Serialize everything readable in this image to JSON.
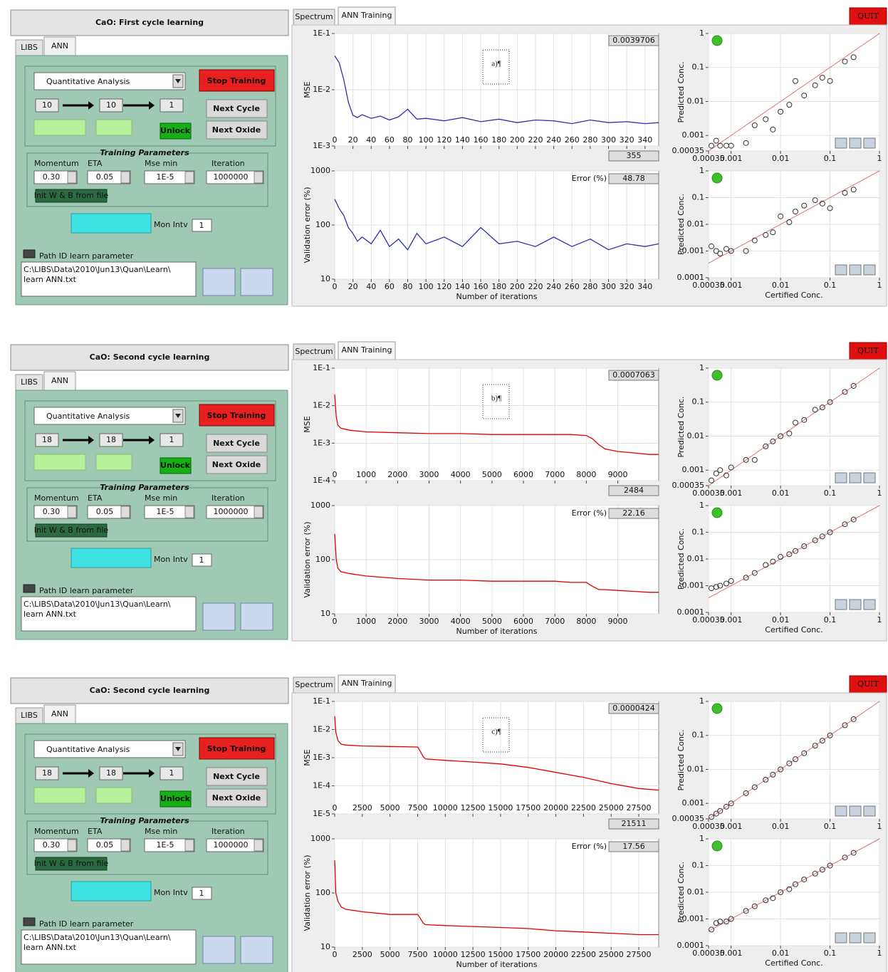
{
  "panels": [
    {
      "title": "CaO: First cycle learning",
      "tabs": [
        "LIBS",
        "ANN"
      ],
      "analysis": "Quantitative Analysis",
      "stop": "Stop Training",
      "layers": [
        "10",
        "10",
        "1"
      ],
      "next_cycle": "Next Cycle",
      "next_oxide": "Next Oxide",
      "unlock": "Unlock",
      "params": {
        "title": "Training Parameters",
        "labels": [
          "Momentum",
          "ETA",
          "Mse min",
          "Iteration"
        ],
        "values": [
          "0.30",
          "0.05",
          "1E-5",
          "1000000"
        ]
      },
      "init": "Init W & B from file",
      "mon_label": "Mon Intv",
      "mon_value": "1",
      "path_label": "Path ID learn parameter",
      "path": [
        "C:\\LIBS\\Data\\2010\\Jun13\\Quan\\Learn\\",
        "learn ANN.txt"
      ],
      "view_tabs": [
        "Spectrum",
        "ANN Training"
      ],
      "quit": "QUIT",
      "tag": "a)¶",
      "mse": {
        "type": "line",
        "ylabel": "MSE",
        "log_y": true,
        "grid": true,
        "color": "#3030b0",
        "readout": "0.0039706",
        "iterations": "355",
        "xlim": [
          0,
          355
        ],
        "ylim": [
          0.001,
          0.1
        ],
        "xticks": [
          0,
          20,
          40,
          60,
          80,
          100,
          120,
          140,
          160,
          180,
          200,
          220,
          240,
          260,
          280,
          300,
          320,
          340
        ],
        "yticks": [
          {
            "value": 0.1,
            "label": "1E-1"
          },
          {
            "value": 0.01,
            "label": "1E-2"
          },
          {
            "value": 0.001,
            "label": "1E-3"
          }
        ],
        "x": [
          0,
          5,
          10,
          15,
          20,
          25,
          30,
          40,
          50,
          60,
          70,
          80,
          90,
          100,
          120,
          140,
          160,
          180,
          200,
          220,
          240,
          260,
          280,
          300,
          320,
          340,
          355
        ],
        "values": [
          0.04,
          0.03,
          0.015,
          0.006,
          0.0035,
          0.0032,
          0.0036,
          0.0031,
          0.0034,
          0.0029,
          0.0033,
          0.0045,
          0.003,
          0.0031,
          0.0028,
          0.0032,
          0.0027,
          0.003,
          0.0026,
          0.0029,
          0.0028,
          0.0025,
          0.0029,
          0.0026,
          0.0027,
          0.0025,
          0.0026
        ]
      },
      "validation": {
        "type": "line",
        "ylabel": "Validation error (%)",
        "xlabel": "Number of iterations",
        "log_y": true,
        "grid": true,
        "color": "#3030b0",
        "error_label": "Error (%)",
        "error": "48.78",
        "xlim": [
          0,
          355
        ],
        "ylim": [
          10,
          1000
        ],
        "xticks": [
          0,
          20,
          40,
          60,
          80,
          100,
          120,
          140,
          160,
          180,
          200,
          220,
          240,
          260,
          280,
          300,
          320,
          340
        ],
        "yticks": [
          1000,
          100,
          10
        ],
        "x": [
          0,
          5,
          10,
          15,
          20,
          25,
          30,
          40,
          50,
          60,
          70,
          80,
          90,
          100,
          120,
          140,
          160,
          180,
          200,
          220,
          240,
          260,
          280,
          300,
          320,
          340,
          355
        ],
        "values": [
          300,
          200,
          150,
          90,
          70,
          50,
          60,
          45,
          80,
          40,
          55,
          35,
          70,
          45,
          60,
          40,
          90,
          45,
          50,
          40,
          60,
          40,
          55,
          35,
          45,
          40,
          45
        ]
      },
      "pred_top": {
        "type": "scatter",
        "ylabel": "Predicted Conc.",
        "log_x": true,
        "log_y": true,
        "xlim": [
          0.00035,
          1
        ],
        "ylim": [
          0.00035,
          1
        ],
        "xticks": [
          0.00035,
          0.001,
          0.01,
          0.1,
          1
        ],
        "yticks": [
          1,
          0.1,
          0.01,
          0.001,
          0.00035
        ],
        "x": [
          0.0004,
          0.0005,
          0.0006,
          0.0008,
          0.001,
          0.002,
          0.003,
          0.005,
          0.007,
          0.01,
          0.015,
          0.02,
          0.03,
          0.05,
          0.07,
          0.1,
          0.2,
          0.3
        ],
        "values": [
          0.0005,
          0.0007,
          0.0005,
          0.0005,
          0.0005,
          0.0006,
          0.002,
          0.003,
          0.0015,
          0.005,
          0.008,
          0.04,
          0.015,
          0.03,
          0.05,
          0.04,
          0.15,
          0.2
        ]
      },
      "pred_bottom": {
        "type": "scatter",
        "ylabel": "Predicted Conc.",
        "xlabel": "Certified Conc.",
        "log_x": true,
        "log_y": true,
        "xlim": [
          0.00035,
          1
        ],
        "ylim": [
          0.0001,
          1
        ],
        "xticks": [
          0.00035,
          0.001,
          0.01,
          0.1,
          1
        ],
        "yticks": [
          1,
          0.1,
          0.01,
          0.001,
          0.0001
        ],
        "x": [
          0.0004,
          0.0005,
          0.0006,
          0.0008,
          0.001,
          0.002,
          0.003,
          0.005,
          0.007,
          0.01,
          0.015,
          0.02,
          0.03,
          0.05,
          0.07,
          0.1,
          0.2,
          0.3
        ],
        "values": [
          0.0015,
          0.001,
          0.0008,
          0.0012,
          0.001,
          0.001,
          0.0025,
          0.004,
          0.005,
          0.02,
          0.012,
          0.03,
          0.05,
          0.08,
          0.06,
          0.04,
          0.15,
          0.2
        ]
      }
    },
    {
      "title": "CaO: Second cycle learning",
      "tabs": [
        "LIBS",
        "ANN"
      ],
      "analysis": "Quantitative Analysis",
      "stop": "Stop Training",
      "layers": [
        "18",
        "18",
        "1"
      ],
      "next_cycle": "Next Cycle",
      "next_oxide": "Next Oxide",
      "unlock": "Unlock",
      "params": {
        "title": "Training Parameters",
        "labels": [
          "Momentum",
          "ETA",
          "Mse min",
          "Iteration"
        ],
        "values": [
          "0.30",
          "0.05",
          "1E-5",
          "1000000"
        ]
      },
      "init": "Init W & B from file",
      "mon_label": "Mon Intv",
      "mon_value": "1",
      "path_label": "Path ID learn parameter",
      "path": [
        "C:\\LIBS\\Data\\2010\\Jun13\\Quan\\Learn\\",
        "learn ANN.txt"
      ],
      "view_tabs": [
        "Spectrum",
        "ANN Training"
      ],
      "quit": "QUIT",
      "tag": "b)¶",
      "mse": {
        "type": "line",
        "ylabel": "MSE",
        "log_y": true,
        "grid": true,
        "color": "#e00000",
        "readout": "0.0007063",
        "iterations": "2484",
        "xlim": [
          0,
          10300
        ],
        "ylim": [
          0.0001,
          0.1
        ],
        "xticks": [
          0,
          1000,
          2000,
          3000,
          4000,
          5000,
          6000,
          7000,
          8000,
          9000
        ],
        "yticks": [
          {
            "value": 0.1,
            "label": "1E-1"
          },
          {
            "value": 0.01,
            "label": "1E-2"
          },
          {
            "value": 0.001,
            "label": "1E-3"
          },
          {
            "value": 0.0001,
            "label": "1E-4"
          }
        ],
        "x": [
          0,
          50,
          100,
          200,
          500,
          1000,
          2000,
          3000,
          4000,
          5000,
          6000,
          7000,
          7500,
          8000,
          8200,
          8400,
          8600,
          9000,
          9500,
          10000,
          10300
        ],
        "values": [
          0.02,
          0.005,
          0.003,
          0.0025,
          0.0022,
          0.002,
          0.0019,
          0.0018,
          0.0018,
          0.0017,
          0.0017,
          0.0017,
          0.0017,
          0.0016,
          0.0013,
          0.0009,
          0.0007,
          0.0006,
          0.00055,
          0.0005,
          0.0005
        ]
      },
      "validation": {
        "type": "line",
        "ylabel": "Validation error (%)",
        "xlabel": "Number of iterations",
        "log_y": true,
        "grid": true,
        "color": "#e00000",
        "error_label": "Error (%)",
        "error": "22.16",
        "xlim": [
          0,
          10300
        ],
        "ylim": [
          10,
          1000
        ],
        "xticks": [
          0,
          1000,
          2000,
          3000,
          4000,
          5000,
          6000,
          7000,
          8000,
          9000
        ],
        "yticks": [
          1000,
          100,
          10
        ],
        "x": [
          0,
          50,
          100,
          200,
          500,
          1000,
          2000,
          3000,
          4000,
          5000,
          6000,
          7000,
          7500,
          8000,
          8200,
          8400,
          8600,
          9000,
          9500,
          10000,
          10300
        ],
        "values": [
          300,
          100,
          70,
          60,
          55,
          50,
          45,
          42,
          42,
          40,
          40,
          40,
          38,
          38,
          32,
          28,
          28,
          27,
          26,
          25,
          25
        ]
      },
      "pred_top": {
        "type": "scatter",
        "ylabel": "Predicted Conc.",
        "log_x": true,
        "log_y": true,
        "xlim": [
          0.00035,
          1
        ],
        "ylim": [
          0.00035,
          1
        ],
        "xticks": [
          0.00035,
          0.001,
          0.01,
          0.1,
          1
        ],
        "yticks": [
          1,
          0.1,
          0.01,
          0.001,
          0.00035
        ],
        "x": [
          0.0004,
          0.0005,
          0.0006,
          0.0008,
          0.001,
          0.002,
          0.003,
          0.005,
          0.007,
          0.01,
          0.015,
          0.02,
          0.03,
          0.05,
          0.07,
          0.1,
          0.2,
          0.3
        ],
        "values": [
          0.0005,
          0.0008,
          0.001,
          0.0007,
          0.0012,
          0.002,
          0.002,
          0.005,
          0.007,
          0.01,
          0.012,
          0.025,
          0.03,
          0.06,
          0.07,
          0.1,
          0.2,
          0.3
        ]
      },
      "pred_bottom": {
        "type": "scatter",
        "ylabel": "Predicted Conc.",
        "xlabel": "Certified Conc.",
        "log_x": true,
        "log_y": true,
        "xlim": [
          0.00035,
          1
        ],
        "ylim": [
          0.0001,
          1
        ],
        "xticks": [
          0.00035,
          0.001,
          0.01,
          0.1,
          1
        ],
        "yticks": [
          1,
          0.1,
          0.01,
          0.001,
          0.0001
        ],
        "x": [
          0.0004,
          0.0005,
          0.0006,
          0.0008,
          0.001,
          0.002,
          0.003,
          0.005,
          0.007,
          0.01,
          0.015,
          0.02,
          0.03,
          0.05,
          0.07,
          0.1,
          0.2,
          0.3
        ],
        "values": [
          0.0008,
          0.0009,
          0.001,
          0.0012,
          0.0015,
          0.002,
          0.003,
          0.006,
          0.008,
          0.012,
          0.015,
          0.02,
          0.03,
          0.05,
          0.07,
          0.1,
          0.2,
          0.3
        ]
      }
    },
    {
      "title": "CaO: Second cycle learning",
      "tabs": [
        "LIBS",
        "ANN"
      ],
      "analysis": "Quantitative Analysis",
      "stop": "Stop Training",
      "layers": [
        "18",
        "18",
        "1"
      ],
      "next_cycle": "Next Cycle",
      "next_oxide": "Next Oxide",
      "unlock": "Unlock",
      "params": {
        "title": "Training Parameters",
        "labels": [
          "Momentum",
          "ETA",
          "Mse min",
          "Iteration"
        ],
        "values": [
          "0.30",
          "0.05",
          "1E-5",
          "1000000"
        ]
      },
      "init": "Init W & B from file",
      "mon_label": "Mon Intv",
      "mon_value": "1",
      "path_label": "Path ID learn parameter",
      "path": [
        "C:\\LIBS\\Data\\2010\\Jun13\\Quan\\Learn\\",
        "learn ANN.txt"
      ],
      "view_tabs": [
        "Spectrum",
        "ANN Training"
      ],
      "quit": "QUIT",
      "tag": "c)¶",
      "mse": {
        "type": "line",
        "ylabel": "MSE",
        "log_y": true,
        "grid": true,
        "color": "#e00000",
        "readout": "0.0000424",
        "iterations": "21511",
        "xlim": [
          0,
          29300
        ],
        "ylim": [
          1e-05,
          0.1
        ],
        "xticks": [
          0,
          2500,
          5000,
          7500,
          10000,
          12500,
          15000,
          17500,
          20000,
          22500,
          25000,
          27500
        ],
        "yticks": [
          {
            "value": 0.1,
            "label": "1E-1"
          },
          {
            "value": 0.01,
            "label": "1E-2"
          },
          {
            "value": 0.001,
            "label": "1E-3"
          },
          {
            "value": 0.0001,
            "label": "1E-4"
          },
          {
            "value": 1e-05,
            "label": "1E-5"
          }
        ],
        "x": [
          0,
          100,
          300,
          600,
          1000,
          2500,
          5000,
          7500,
          7700,
          8000,
          8200,
          10000,
          12500,
          15000,
          17500,
          20000,
          22500,
          25000,
          27500,
          29300
        ],
        "values": [
          0.03,
          0.008,
          0.004,
          0.003,
          0.0028,
          0.0026,
          0.0025,
          0.0024,
          0.0018,
          0.0011,
          0.0009,
          0.0008,
          0.0007,
          0.0006,
          0.00045,
          0.0003,
          0.0002,
          0.00012,
          8e-05,
          7e-05
        ]
      },
      "validation": {
        "type": "line",
        "ylabel": "Validation error (%)",
        "xlabel": "Number of iterations",
        "log_y": true,
        "grid": true,
        "color": "#e00000",
        "error_label": "Error (%)",
        "error": "17.56",
        "xlim": [
          0,
          29300
        ],
        "ylim": [
          10,
          1000
        ],
        "xticks": [
          0,
          2500,
          5000,
          7500,
          10000,
          12500,
          15000,
          17500,
          20000,
          22500,
          25000,
          27500
        ],
        "yticks": [
          1000,
          100,
          10
        ],
        "x": [
          0,
          100,
          300,
          600,
          1000,
          2500,
          5000,
          7500,
          7700,
          8000,
          8200,
          10000,
          12500,
          15000,
          17500,
          20000,
          22500,
          25000,
          27500,
          29300
        ],
        "values": [
          400,
          100,
          70,
          55,
          50,
          45,
          40,
          40,
          35,
          28,
          26,
          25,
          24,
          23,
          22,
          20,
          19,
          18,
          17,
          17
        ]
      },
      "pred_top": {
        "type": "scatter",
        "ylabel": "Predicted Conc.",
        "log_x": true,
        "log_y": true,
        "xlim": [
          0.00035,
          1
        ],
        "ylim": [
          0.00035,
          1
        ],
        "xticks": [
          0.00035,
          0.001,
          0.01,
          0.1,
          1
        ],
        "yticks": [
          1,
          0.1,
          0.01,
          0.001,
          0.00035
        ],
        "x": [
          0.0004,
          0.0005,
          0.0006,
          0.0008,
          0.001,
          0.002,
          0.003,
          0.005,
          0.007,
          0.01,
          0.015,
          0.02,
          0.03,
          0.05,
          0.07,
          0.1,
          0.2,
          0.3
        ],
        "values": [
          0.0004,
          0.0005,
          0.0006,
          0.0008,
          0.001,
          0.002,
          0.003,
          0.005,
          0.007,
          0.01,
          0.015,
          0.02,
          0.03,
          0.05,
          0.07,
          0.1,
          0.2,
          0.3
        ]
      },
      "pred_bottom": {
        "type": "scatter",
        "ylabel": "Predicted Conc.",
        "xlabel": "Certified Conc.",
        "log_x": true,
        "log_y": true,
        "xlim": [
          0.00035,
          1
        ],
        "ylim": [
          0.0001,
          1
        ],
        "xticks": [
          0.00035,
          0.001,
          0.01,
          0.1,
          1
        ],
        "yticks": [
          1,
          0.1,
          0.01,
          0.001,
          0.0001
        ],
        "x": [
          0.0004,
          0.0005,
          0.0006,
          0.0008,
          0.001,
          0.002,
          0.003,
          0.005,
          0.007,
          0.01,
          0.015,
          0.02,
          0.03,
          0.05,
          0.07,
          0.1,
          0.2,
          0.3
        ],
        "values": [
          0.0004,
          0.0007,
          0.0008,
          0.0008,
          0.001,
          0.002,
          0.003,
          0.005,
          0.006,
          0.01,
          0.013,
          0.02,
          0.03,
          0.05,
          0.07,
          0.1,
          0.2,
          0.3
        ]
      }
    }
  ]
}
